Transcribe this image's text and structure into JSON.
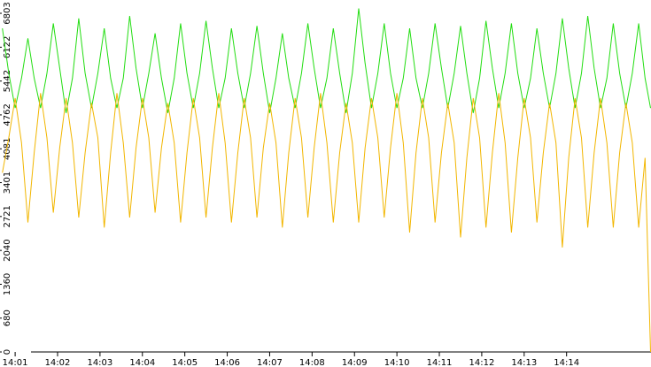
{
  "chart_data": {
    "type": "line",
    "x": [
      0.7,
      0.85,
      1.0,
      1.15,
      1.3,
      1.45,
      1.6,
      1.75,
      1.9,
      2.05,
      2.2,
      2.35,
      2.5,
      2.65,
      2.8,
      2.95,
      3.1,
      3.25,
      3.4,
      3.55,
      3.7,
      3.85,
      4.0,
      4.15,
      4.3,
      4.45,
      4.6,
      4.75,
      4.9,
      5.05,
      5.2,
      5.35,
      5.5,
      5.65,
      5.8,
      5.95,
      6.1,
      6.25,
      6.4,
      6.55,
      6.7,
      6.85,
      7.0,
      7.15,
      7.3,
      7.45,
      7.6,
      7.75,
      7.9,
      8.05,
      8.2,
      8.35,
      8.5,
      8.65,
      8.8,
      8.95,
      9.1,
      9.25,
      9.4,
      9.55,
      9.7,
      9.85,
      10.0,
      10.15,
      10.3,
      10.45,
      10.6,
      10.75,
      10.9,
      11.05,
      11.2,
      11.35,
      11.5,
      11.65,
      11.8,
      11.95,
      12.1,
      12.25,
      12.4,
      12.55,
      12.7,
      12.85,
      13.0,
      13.15,
      13.3,
      13.45,
      13.6,
      13.75,
      13.9,
      14.05,
      14.2,
      14.35,
      14.5,
      14.65,
      14.8,
      14.95,
      15.1,
      15.25,
      15.4,
      15.55,
      15.7,
      15.85,
      15.98
    ],
    "series": [
      {
        "color": "#22dd11",
        "values": [
          6500,
          5600,
          4900,
          5500,
          6300,
          5500,
          4900,
          5600,
          6600,
          5700,
          4800,
          5500,
          6700,
          5600,
          4900,
          5600,
          6500,
          5500,
          4900,
          5500,
          6750,
          5700,
          4900,
          5600,
          6400,
          5500,
          4800,
          5500,
          6600,
          5600,
          4900,
          5600,
          6650,
          5700,
          4900,
          5500,
          6500,
          5600,
          4900,
          5600,
          6550,
          5600,
          4800,
          5500,
          6400,
          5500,
          4900,
          5600,
          6600,
          5700,
          4900,
          5500,
          6500,
          5600,
          4800,
          5600,
          6900,
          5800,
          4900,
          5600,
          6600,
          5600,
          4900,
          5500,
          6500,
          5500,
          4900,
          5600,
          6600,
          5700,
          4900,
          5600,
          6550,
          5600,
          4800,
          5500,
          6650,
          5700,
          4900,
          5600,
          6600,
          5600,
          4900,
          5500,
          6500,
          5600,
          4900,
          5600,
          6700,
          5700,
          4900,
          5600,
          6750,
          5700,
          4900,
          5500,
          6600,
          5600,
          4900,
          5600,
          6600,
          5500,
          4900
        ]
      },
      {
        "color": "#f2b600",
        "values": [
          3600,
          4300,
          5100,
          4200,
          2600,
          4000,
          5200,
          4300,
          2800,
          4100,
          5100,
          4200,
          2700,
          4000,
          5000,
          4300,
          2500,
          4000,
          5200,
          4200,
          2700,
          4100,
          5100,
          4300,
          2800,
          4100,
          5000,
          4200,
          2600,
          4000,
          5100,
          4300,
          2700,
          4100,
          5200,
          4200,
          2600,
          4000,
          5100,
          4300,
          2700,
          4100,
          5000,
          4200,
          2500,
          4000,
          5100,
          4300,
          2700,
          4100,
          5200,
          4200,
          2600,
          4000,
          5000,
          4200,
          2600,
          4100,
          5100,
          4300,
          2700,
          4100,
          5200,
          4200,
          2400,
          4000,
          5100,
          4300,
          2600,
          4000,
          5000,
          4200,
          2300,
          3900,
          5100,
          4300,
          2500,
          4000,
          5200,
          4200,
          2400,
          3900,
          5100,
          4300,
          2600,
          4000,
          5000,
          4200,
          2100,
          3900,
          5100,
          4300,
          2500,
          4000,
          5100,
          4200,
          2500,
          4000,
          5000,
          4200,
          2500,
          3900,
          0
        ]
      }
    ],
    "xlim": [
      0.643,
      15.99
    ],
    "xticks": [
      {
        "value": 1,
        "label": "14:01"
      },
      {
        "value": 2,
        "label": "14:02"
      },
      {
        "value": 3,
        "label": "14:03"
      },
      {
        "value": 4,
        "label": "14:04"
      },
      {
        "value": 5,
        "label": "14:05"
      },
      {
        "value": 6,
        "label": "14:06"
      },
      {
        "value": 7,
        "label": "14:07"
      },
      {
        "value": 8,
        "label": "14:08"
      },
      {
        "value": 9,
        "label": "14:09"
      },
      {
        "value": 10,
        "label": "14:10"
      },
      {
        "value": 11,
        "label": "14:11"
      },
      {
        "value": 12,
        "label": "14:12"
      },
      {
        "value": 13,
        "label": "14:13"
      },
      {
        "value": 14,
        "label": "14:14"
      }
    ],
    "ylim": [
      0,
      7070
    ],
    "yticks": [
      0,
      680,
      1360,
      2040,
      2721,
      3401,
      4081,
      4762,
      5442,
      6122,
      6803
    ]
  }
}
